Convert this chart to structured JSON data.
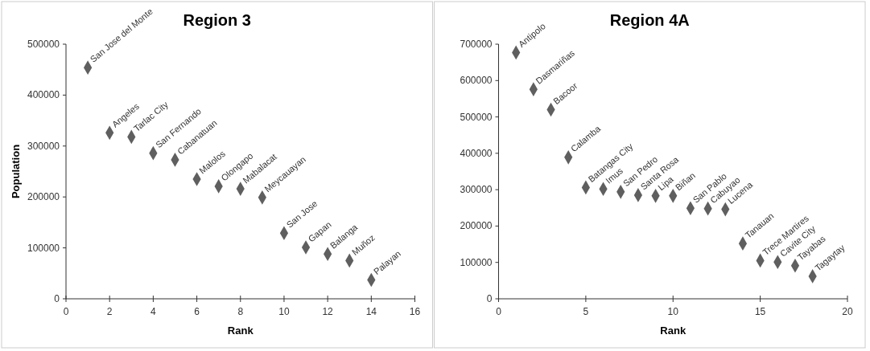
{
  "chart_data": [
    {
      "type": "scatter",
      "title": "Region 3",
      "xlabel": "Rank",
      "ylabel": "Population",
      "marker": "diamond",
      "color": "#5f5f5f",
      "xlim": [
        0,
        16
      ],
      "xticks": [
        0,
        2,
        4,
        6,
        8,
        10,
        12,
        14,
        16
      ],
      "ylim": [
        0,
        500000
      ],
      "yticks": [
        0,
        100000,
        200000,
        300000,
        400000,
        500000
      ],
      "x": [
        1,
        2,
        3,
        4,
        5,
        6,
        7,
        8,
        9,
        10,
        11,
        12,
        13,
        14
      ],
      "values": [
        454000,
        326000,
        318000,
        286000,
        273000,
        235000,
        221000,
        216000,
        199000,
        129000,
        101000,
        88000,
        75000,
        37000
      ],
      "annotations": [
        {
          "text": "San Jose del Monte",
          "x": 1,
          "y": 454000
        },
        {
          "text": "Angeles",
          "x": 2,
          "y": 326000
        },
        {
          "text": "Tarlac City",
          "x": 3,
          "y": 318000
        },
        {
          "text": "San Fernando",
          "x": 4,
          "y": 286000
        },
        {
          "text": "Cabanatuan",
          "x": 5,
          "y": 273000
        },
        {
          "text": "Malolos",
          "x": 6,
          "y": 235000
        },
        {
          "text": "Olongapo",
          "x": 7,
          "y": 221000
        },
        {
          "text": "Mabalacat",
          "x": 8,
          "y": 216000
        },
        {
          "text": "Meycauayan",
          "x": 9,
          "y": 199000
        },
        {
          "text": "San Jose",
          "x": 10,
          "y": 129000
        },
        {
          "text": "Gapan",
          "x": 11,
          "y": 101000
        },
        {
          "text": "Balanga",
          "x": 12,
          "y": 88000
        },
        {
          "text": "Muñoz",
          "x": 13,
          "y": 75000
        },
        {
          "text": "Palayan",
          "x": 14,
          "y": 37000
        }
      ]
    },
    {
      "type": "scatter",
      "title": "Region 4A",
      "xlabel": "Rank",
      "marker": "diamond",
      "color": "#5f5f5f",
      "xlim": [
        0,
        20
      ],
      "xticks": [
        0,
        5,
        10,
        15,
        20
      ],
      "ylim": [
        0,
        700000
      ],
      "yticks": [
        0,
        100000,
        200000,
        300000,
        400000,
        500000,
        600000,
        700000
      ],
      "x": [
        1,
        2,
        3,
        4,
        5,
        6,
        7,
        8,
        9,
        10,
        11,
        12,
        13,
        14,
        15,
        16,
        17,
        18
      ],
      "values": [
        677000,
        576000,
        520000,
        389000,
        306000,
        302000,
        294000,
        285000,
        283000,
        283000,
        249000,
        248000,
        246000,
        152000,
        105000,
        101000,
        91000,
        62000
      ],
      "annotations": [
        {
          "text": "Antipolo",
          "x": 1,
          "y": 677000
        },
        {
          "text": "Dasmariñas",
          "x": 2,
          "y": 576000
        },
        {
          "text": "Bacoor",
          "x": 3,
          "y": 520000
        },
        {
          "text": "Calamba",
          "x": 4,
          "y": 389000
        },
        {
          "text": "Batangas City",
          "x": 5,
          "y": 306000
        },
        {
          "text": "Imus",
          "x": 6,
          "y": 302000
        },
        {
          "text": "San Pedro",
          "x": 7,
          "y": 294000
        },
        {
          "text": "Santa Rosa",
          "x": 8,
          "y": 285000
        },
        {
          "text": "Lipa",
          "x": 9,
          "y": 283000
        },
        {
          "text": "Biñan",
          "x": 10,
          "y": 283000
        },
        {
          "text": "San Pablo",
          "x": 11,
          "y": 249000
        },
        {
          "text": "Cabuyao",
          "x": 12,
          "y": 248000
        },
        {
          "text": "Lucena",
          "x": 13,
          "y": 246000
        },
        {
          "text": "Tanauan",
          "x": 14,
          "y": 152000
        },
        {
          "text": "Trece Martires",
          "x": 15,
          "y": 105000
        },
        {
          "text": "Cavite City",
          "x": 16,
          "y": 101000
        },
        {
          "text": "Tayabas",
          "x": 17,
          "y": 91000
        },
        {
          "text": "Tagaytay",
          "x": 18,
          "y": 62000
        }
      ]
    }
  ]
}
